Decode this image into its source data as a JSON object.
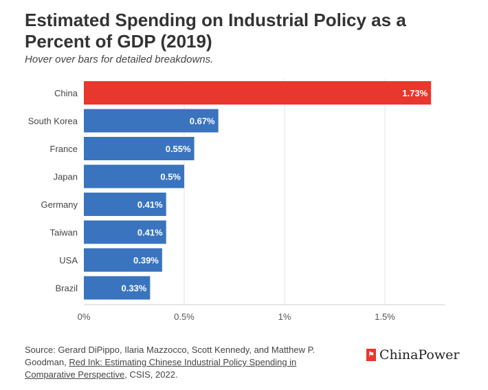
{
  "title": "Estimated Spending on Industrial Policy as a Percent of GDP (2019)",
  "subtitle": "Hover over bars for detailed breakdowns.",
  "chart_data": {
    "type": "bar",
    "orientation": "horizontal",
    "categories": [
      "China",
      "South Korea",
      "France",
      "Japan",
      "Germany",
      "Taiwan",
      "USA",
      "Brazil"
    ],
    "values": [
      1.73,
      0.67,
      0.55,
      0.5,
      0.41,
      0.41,
      0.39,
      0.33
    ],
    "data_labels": [
      "1.73%",
      "0.67%",
      "0.55%",
      "0.5%",
      "0.41%",
      "0.41%",
      "0.39%",
      "0.33%"
    ],
    "xlim": [
      0,
      1.8
    ],
    "x_ticks": [
      0,
      0.5,
      1,
      1.5
    ],
    "x_tick_labels": [
      "0%",
      "0.5%",
      "1%",
      "1.5%"
    ],
    "grid": true,
    "colors": {
      "highlight": "#e8372c",
      "default": "#3a74bf"
    },
    "highlight_category": "China"
  },
  "source": {
    "prefix": "Source: Gerard DiPippo, Ilaria Mazzocco, Scott Kennedy, and Matthew P. Goodman, ",
    "link_text": "Red Ink: Estimating Chinese Industrial Policy Spending in Comparative Perspective",
    "suffix": ", CSIS, 2022."
  },
  "logo": {
    "text": "ChinaPower"
  }
}
